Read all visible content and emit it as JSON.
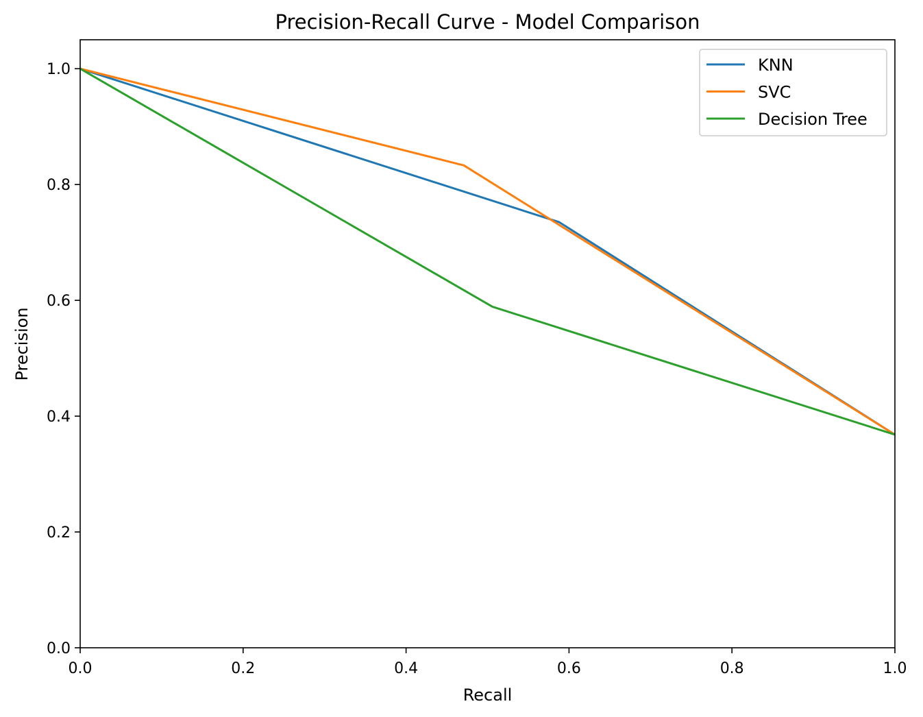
{
  "chart_data": {
    "type": "line",
    "title": "Precision-Recall Curve - Model Comparison",
    "xlabel": "Recall",
    "ylabel": "Precision",
    "xlim": [
      0,
      1
    ],
    "ylim": [
      0,
      1.05
    ],
    "xticks": [
      0.0,
      0.2,
      0.4,
      0.6,
      0.8,
      1.0
    ],
    "yticks": [
      0.0,
      0.2,
      0.4,
      0.6,
      0.8,
      1.0
    ],
    "xtick_labels": [
      "0.0",
      "0.2",
      "0.4",
      "0.6",
      "0.8",
      "1.0"
    ],
    "ytick_labels": [
      "0.0",
      "0.2",
      "0.4",
      "0.6",
      "0.8",
      "1.0"
    ],
    "grid": false,
    "legend_position": "top-right",
    "series": [
      {
        "name": "KNN",
        "color": "#1f77b4",
        "x": [
          0.0,
          0.588,
          1.0
        ],
        "y": [
          1.0,
          0.735,
          0.368
        ]
      },
      {
        "name": "SVC",
        "color": "#ff7f0e",
        "x": [
          0.0,
          0.471,
          1.0
        ],
        "y": [
          1.0,
          0.833,
          0.368
        ]
      },
      {
        "name": "Decision Tree",
        "color": "#2ca02c",
        "x": [
          0.0,
          0.506,
          1.0
        ],
        "y": [
          1.0,
          0.589,
          0.368
        ]
      }
    ]
  }
}
